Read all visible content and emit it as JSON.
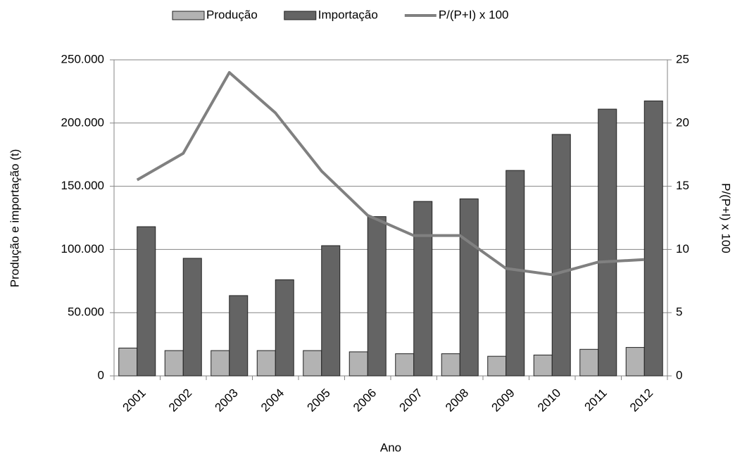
{
  "chart_data": {
    "type": "bar",
    "categories": [
      "2001",
      "2002",
      "2003",
      "2004",
      "2005",
      "2006",
      "2007",
      "2008",
      "2009",
      "2010",
      "2011",
      "2012"
    ],
    "series": [
      {
        "name": "Produção",
        "type": "bar",
        "color": "#b3b3b3",
        "values": [
          22000,
          20000,
          20000,
          20000,
          20000,
          19000,
          17500,
          17500,
          15500,
          16500,
          21000,
          22500
        ]
      },
      {
        "name": "Importação",
        "type": "bar",
        "color": "#646464",
        "values": [
          118000,
          93000,
          63500,
          76000,
          103000,
          126000,
          138000,
          140000,
          162500,
          191000,
          211000,
          217500
        ]
      },
      {
        "name": "P/(P+I) x 100",
        "type": "line",
        "axis": "y2",
        "color": "#808080",
        "values": [
          15.5,
          17.6,
          24,
          20.8,
          16.2,
          12.7,
          11.1,
          11.1,
          8.5,
          8.0,
          9.0,
          9.2
        ]
      }
    ],
    "xlabel": "Ano",
    "ylabel": "Produção e importação (t)",
    "y2label": "P/(P+I) x 100",
    "ylim": [
      0,
      250000
    ],
    "yticks": [
      0,
      {
        "value": 50000,
        "label": "50.000"
      },
      {
        "value": 100000,
        "label": "100.000"
      },
      {
        "value": 150000,
        "label": "150.000"
      },
      {
        "value": 200000,
        "label": "200.000"
      },
      {
        "value": 250000,
        "label": "250.000"
      }
    ],
    "y2lim": [
      0,
      25
    ],
    "y2ticks": [
      0,
      5,
      10,
      15,
      20,
      25
    ],
    "grid": true,
    "legend": "top"
  }
}
